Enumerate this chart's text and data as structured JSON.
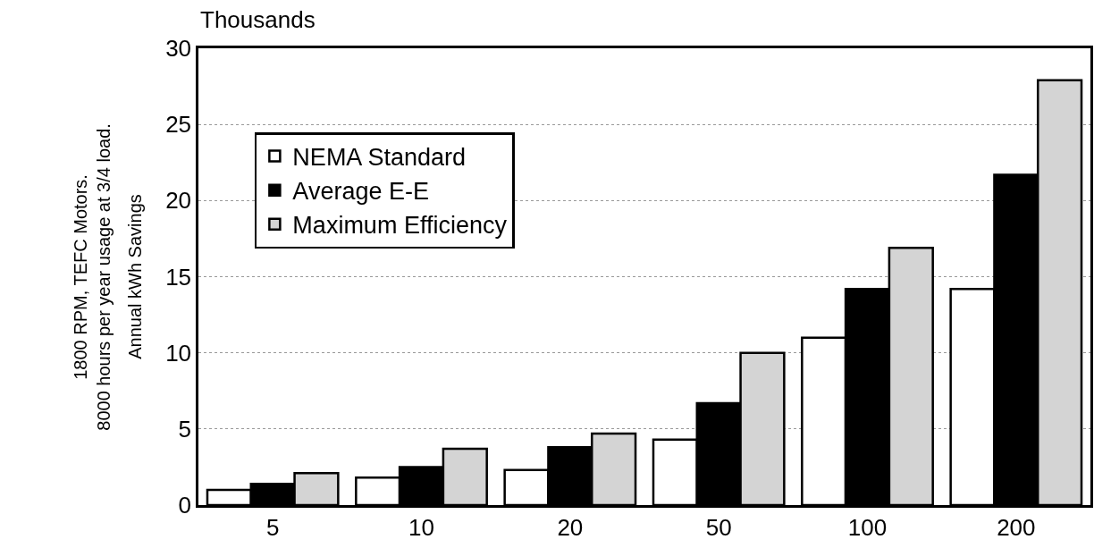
{
  "chart_data": {
    "type": "bar",
    "ylabel": "Annual kWh Savings",
    "annotations": [
      "Thousands",
      "1800 RPM, TEFC Motors.\n8000 hours per year usage at 3/4 load."
    ],
    "categories": [
      "5",
      "10",
      "20",
      "50",
      "100",
      "200"
    ],
    "series": [
      {
        "name": "NEMA Standard",
        "color": "#ffffff",
        "values": [
          1.0,
          1.8,
          2.3,
          4.3,
          11.0,
          14.2
        ]
      },
      {
        "name": "Average E-E",
        "color": "#000000",
        "values": [
          1.4,
          2.5,
          3.8,
          6.7,
          14.2,
          21.7
        ]
      },
      {
        "name": "Maximum Efficiency",
        "color": "#d4d4d4",
        "values": [
          2.1,
          3.7,
          4.7,
          10.0,
          16.9,
          27.9
        ]
      }
    ],
    "ylim": [
      0,
      30
    ],
    "yticks": [
      0,
      5,
      10,
      15,
      20,
      25,
      30
    ],
    "grid": "y",
    "legend": "top left"
  }
}
